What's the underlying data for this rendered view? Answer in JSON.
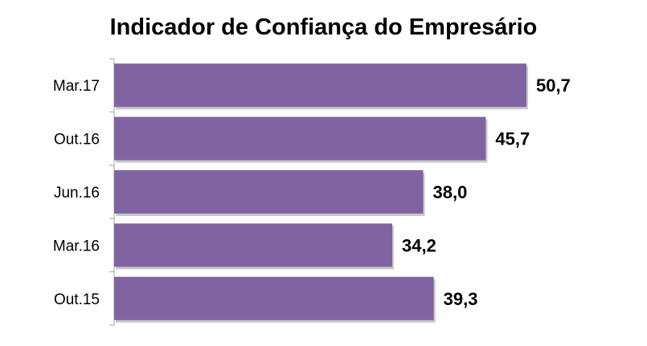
{
  "chart_data": {
    "type": "bar",
    "orientation": "horizontal",
    "title": "Indicador de Confiança do Empresário",
    "categories": [
      "Mar.17",
      "Out.16",
      "Jun.16",
      "Mar.16",
      "Out.15"
    ],
    "values": [
      50.7,
      45.7,
      38.0,
      34.2,
      39.3
    ],
    "value_labels": [
      "50,7",
      "45,7",
      "38,0",
      "34,2",
      "39,3"
    ],
    "xlim": [
      0,
      55
    ],
    "grid": false,
    "legend": "none",
    "bar_color": "#8064A2"
  }
}
